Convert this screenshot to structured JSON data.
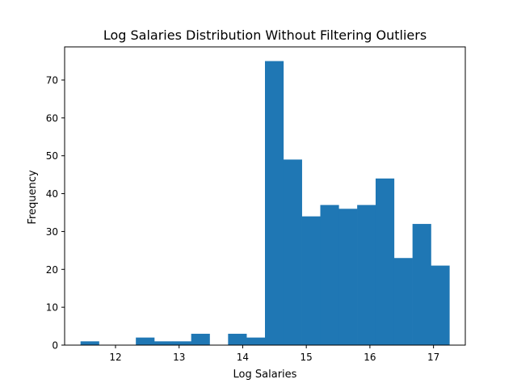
{
  "chart_data": {
    "type": "bar",
    "title": "Log Salaries Distribution Without Filtering Outliers",
    "xlabel": "Log Salaries",
    "ylabel": "Frequency",
    "xlim": [
      11.2,
      17.5
    ],
    "ylim": [
      0,
      78.75
    ],
    "xticks": [
      12,
      13,
      14,
      15,
      16,
      17
    ],
    "yticks": [
      0,
      10,
      20,
      30,
      40,
      50,
      60,
      70
    ],
    "bin_edges": [
      11.45,
      11.74,
      12.03,
      12.32,
      12.61,
      12.9,
      13.19,
      13.48,
      13.77,
      14.06,
      14.35,
      14.64,
      14.93,
      15.22,
      15.51,
      15.8,
      16.09,
      16.38,
      16.67,
      16.96,
      17.25
    ],
    "values": [
      1,
      0,
      0,
      2,
      1,
      1,
      3,
      0,
      3,
      2,
      75,
      49,
      34,
      37,
      36,
      37,
      44,
      23,
      32,
      21
    ],
    "bar_color": "#1f77b4",
    "grid": false,
    "legend": false
  }
}
